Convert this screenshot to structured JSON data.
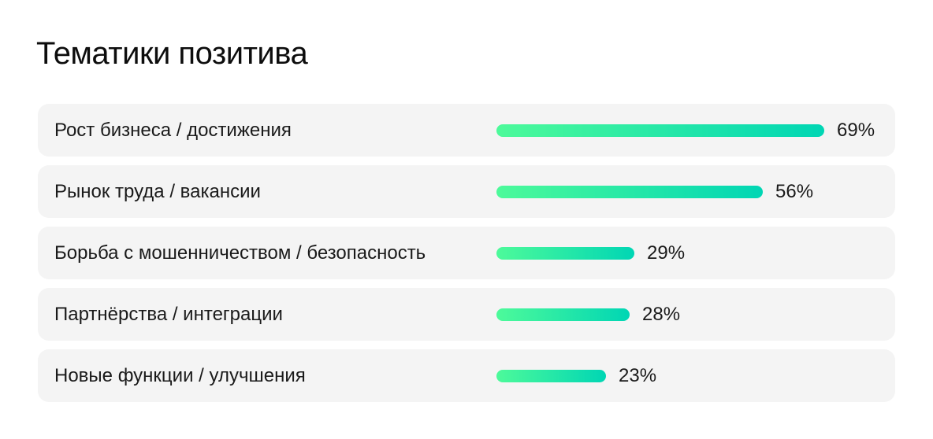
{
  "chart_data": {
    "type": "bar",
    "orientation": "horizontal",
    "title": "Тематики позитива",
    "categories": [
      "Рост бизнеса / достижения",
      "Рынок труда / вакансии",
      "Борьба с мошенничеством / безопасность",
      "Партнёрства / интеграции",
      "Новые функции / улучшения"
    ],
    "values": [
      69,
      56,
      29,
      28,
      23
    ],
    "value_labels": [
      "69%",
      "56%",
      "29%",
      "28%",
      "23%"
    ],
    "unit": "%",
    "xlim": [
      0,
      69
    ],
    "grid": false,
    "colors": {
      "bar_start": "#4dfa9a",
      "bar_end": "#00d6b4",
      "row_background": "#f4f4f4"
    }
  }
}
